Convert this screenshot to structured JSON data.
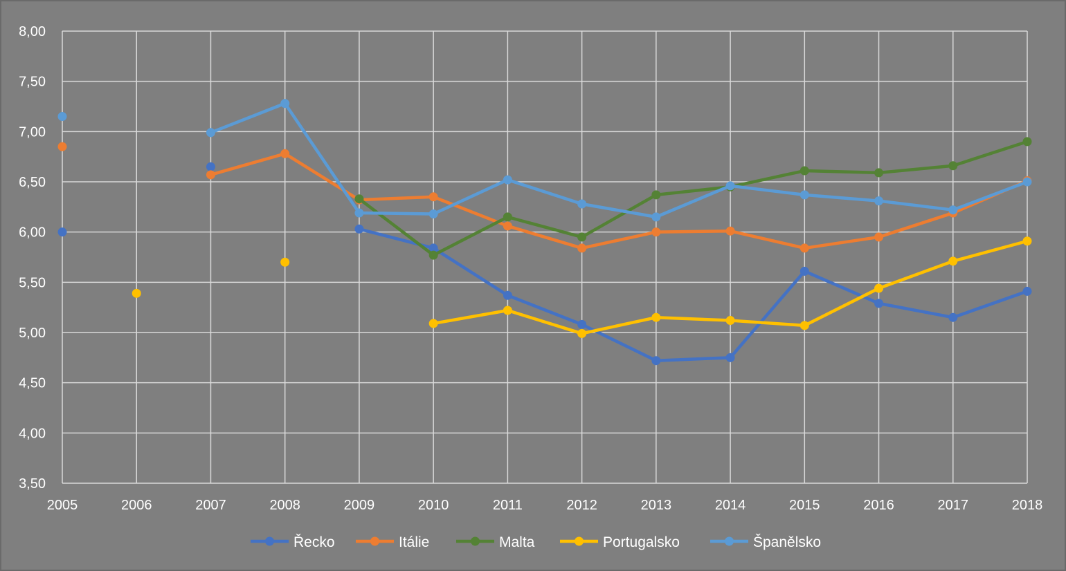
{
  "chart_data": {
    "type": "line",
    "title": "",
    "xlabel": "",
    "ylabel": "",
    "categories": [
      "2005",
      "2006",
      "2007",
      "2008",
      "2009",
      "2010",
      "2011",
      "2012",
      "2013",
      "2014",
      "2015",
      "2016",
      "2017",
      "2018"
    ],
    "ylim": [
      3.5,
      8.0
    ],
    "ytick_labels": [
      "3,50",
      "4,00",
      "4,50",
      "5,00",
      "5,50",
      "6,00",
      "6,50",
      "7,00",
      "7,50",
      "8,00"
    ],
    "grid": true,
    "legend_position": "bottom",
    "series": [
      {
        "name": "Řecko",
        "color": "#4472c4",
        "values": [
          6.0,
          null,
          6.65,
          null,
          6.03,
          5.84,
          5.37,
          5.08,
          4.72,
          4.75,
          5.61,
          5.29,
          5.15,
          5.41
        ]
      },
      {
        "name": "Itálie",
        "color": "#ed7d31",
        "values": [
          6.85,
          null,
          6.57,
          6.78,
          6.32,
          6.35,
          6.06,
          5.84,
          6.0,
          6.01,
          5.84,
          5.95,
          6.19,
          6.51
        ]
      },
      {
        "name": "Malta",
        "color": "#548235",
        "values": [
          null,
          null,
          null,
          null,
          6.33,
          5.77,
          6.15,
          5.95,
          6.37,
          6.45,
          6.61,
          6.59,
          6.66,
          6.9
        ]
      },
      {
        "name": "Portugalsko",
        "color": "#ffc000",
        "values": [
          null,
          5.39,
          null,
          5.7,
          null,
          5.09,
          5.22,
          4.99,
          5.15,
          5.12,
          5.07,
          5.44,
          5.71,
          5.91
        ]
      },
      {
        "name": "Španělsko",
        "color": "#5b9bd5",
        "values": [
          7.15,
          null,
          6.99,
          7.28,
          6.19,
          6.18,
          6.52,
          6.28,
          6.15,
          6.46,
          6.37,
          6.31,
          6.22,
          6.5
        ]
      }
    ]
  }
}
